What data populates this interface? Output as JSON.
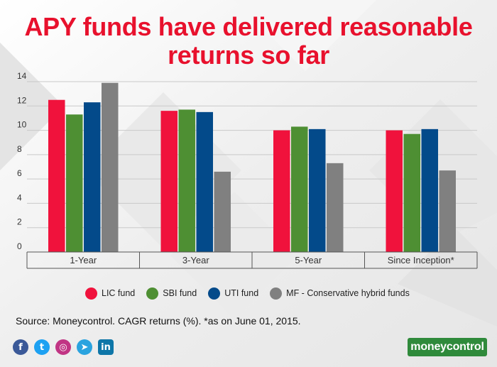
{
  "title_line1": "APY funds have delivered reasonable",
  "title_line2": "returns so far",
  "source": "Source: Moneycontrol. CAGR returns (%). *as on June 01, 2015.",
  "logo": "moneycontrol",
  "social": [
    {
      "icon": "facebook-icon",
      "glyph": "f",
      "color": "#3b5998"
    },
    {
      "icon": "twitter-icon",
      "glyph": "t",
      "color": "#1da1f2"
    },
    {
      "icon": "instagram-icon",
      "glyph": "◎",
      "color": "#c13584"
    },
    {
      "icon": "telegram-icon",
      "glyph": "➤",
      "color": "#2aa3df"
    },
    {
      "icon": "linkedin-icon",
      "glyph": "in",
      "color": "#0e76a8"
    }
  ],
  "chart_data": {
    "type": "bar",
    "categories": [
      "1-Year",
      "3-Year",
      "5-Year",
      "Since Inception*"
    ],
    "series": [
      {
        "name": "LIC fund",
        "color": "#f0123c",
        "values": [
          12.5,
          11.6,
          10.0,
          10.0
        ]
      },
      {
        "name": "SBI fund",
        "color": "#4e8f33",
        "values": [
          11.3,
          11.7,
          10.3,
          9.7
        ]
      },
      {
        "name": "UTI fund",
        "color": "#034a8a",
        "values": [
          12.3,
          11.5,
          10.1,
          10.1
        ]
      },
      {
        "name": "MF - Conservative hybrid funds",
        "color": "#808080",
        "values": [
          13.9,
          6.6,
          7.3,
          6.7
        ]
      }
    ],
    "ylim": [
      0,
      14
    ],
    "yticks": [
      0,
      2,
      4,
      6,
      8,
      10,
      12,
      14
    ],
    "grid": true,
    "legend_position": "bottom"
  }
}
